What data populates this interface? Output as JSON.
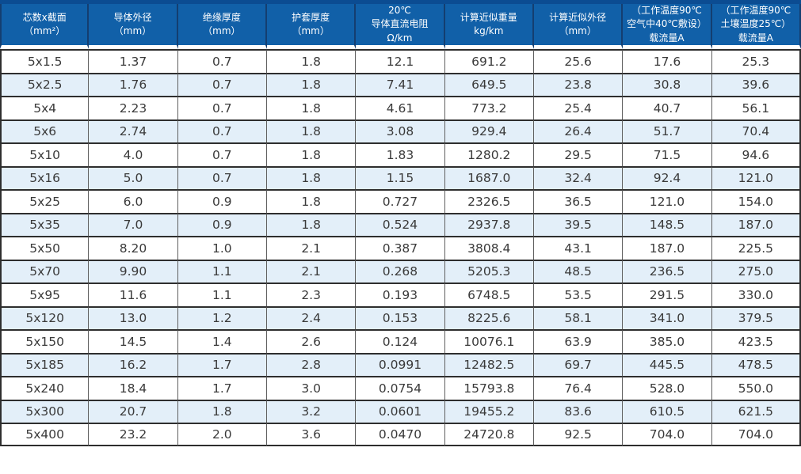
{
  "table": {
    "headers": [
      "芯数x截面\n（mm²）",
      "导体外径\n（mm）",
      "绝缘厚度\n（mm）",
      "护套厚度\n（mm）",
      "20℃\n导体直流电阻\nΩ/km",
      "计算近似重量\nkg/km",
      "计算近似外径\n（mm）",
      "（工作温度90℃\n空气中40℃敷设）\n载流量A",
      "（工作温度90℃\n土壤温度25℃）\n载流量A"
    ],
    "rows": [
      [
        "5x1.5",
        "1.37",
        "0.7",
        "1.8",
        "12.1",
        "691.2",
        "25.6",
        "17.6",
        "25.3"
      ],
      [
        "5x2.5",
        "1.76",
        "0.7",
        "1.8",
        "7.41",
        "649.5",
        "23.8",
        "30.8",
        "39.6"
      ],
      [
        "5x4",
        "2.23",
        "0.7",
        "1.8",
        "4.61",
        "773.2",
        "25.4",
        "40.7",
        "56.1"
      ],
      [
        "5x6",
        "2.74",
        "0.7",
        "1.8",
        "3.08",
        "929.4",
        "26.4",
        "51.7",
        "70.4"
      ],
      [
        "5x10",
        "4.0",
        "0.7",
        "1.8",
        "1.83",
        "1280.2",
        "29.5",
        "71.5",
        "94.6"
      ],
      [
        "5x16",
        "5.0",
        "0.7",
        "1.8",
        "1.15",
        "1687.0",
        "32.4",
        "92.4",
        "121.0"
      ],
      [
        "5x25",
        "6.0",
        "0.9",
        "1.8",
        "0.727",
        "2326.5",
        "36.5",
        "121.0",
        "154.0"
      ],
      [
        "5x35",
        "7.0",
        "0.9",
        "1.8",
        "0.524",
        "2937.8",
        "39.5",
        "148.5",
        "187.0"
      ],
      [
        "5x50",
        "8.20",
        "1.0",
        "2.1",
        "0.387",
        "3808.4",
        "43.1",
        "187.0",
        "225.5"
      ],
      [
        "5x70",
        "9.90",
        "1.1",
        "2.1",
        "0.268",
        "5205.3",
        "48.5",
        "236.5",
        "275.0"
      ],
      [
        "5x95",
        "11.6",
        "1.1",
        "2.3",
        "0.193",
        "6748.5",
        "53.5",
        "291.5",
        "330.0"
      ],
      [
        "5x120",
        "13.0",
        "1.2",
        "2.4",
        "0.153",
        "8225.6",
        "58.1",
        "341.0",
        "379.5"
      ],
      [
        "5x150",
        "14.5",
        "1.4",
        "2.6",
        "0.124",
        "10076.1",
        "63.9",
        "385.0",
        "423.5"
      ],
      [
        "5x185",
        "16.2",
        "1.7",
        "2.8",
        "0.0991",
        "12482.5",
        "69.7",
        "445.5",
        "478.5"
      ],
      [
        "5x240",
        "18.4",
        "1.7",
        "3.0",
        "0.0754",
        "15793.8",
        "76.4",
        "528.0",
        "550.0"
      ],
      [
        "5x300",
        "20.7",
        "1.8",
        "3.2",
        "0.0601",
        "19455.2",
        "83.6",
        "610.5",
        "621.5"
      ],
      [
        "5x400",
        "23.2",
        "2.0",
        "3.6",
        "0.0470",
        "24720.8",
        "92.5",
        "704.0",
        "704.0"
      ]
    ],
    "colors": {
      "header_bg": "#1160a8",
      "top_accent_bar": "#0b4c92",
      "stripe_row_bg": "#e3eff9",
      "header_text": "#ffffff",
      "body_text": "#3a3a3a",
      "row_border": "#2e2e2e",
      "column_border": "#5f5f5f"
    }
  }
}
